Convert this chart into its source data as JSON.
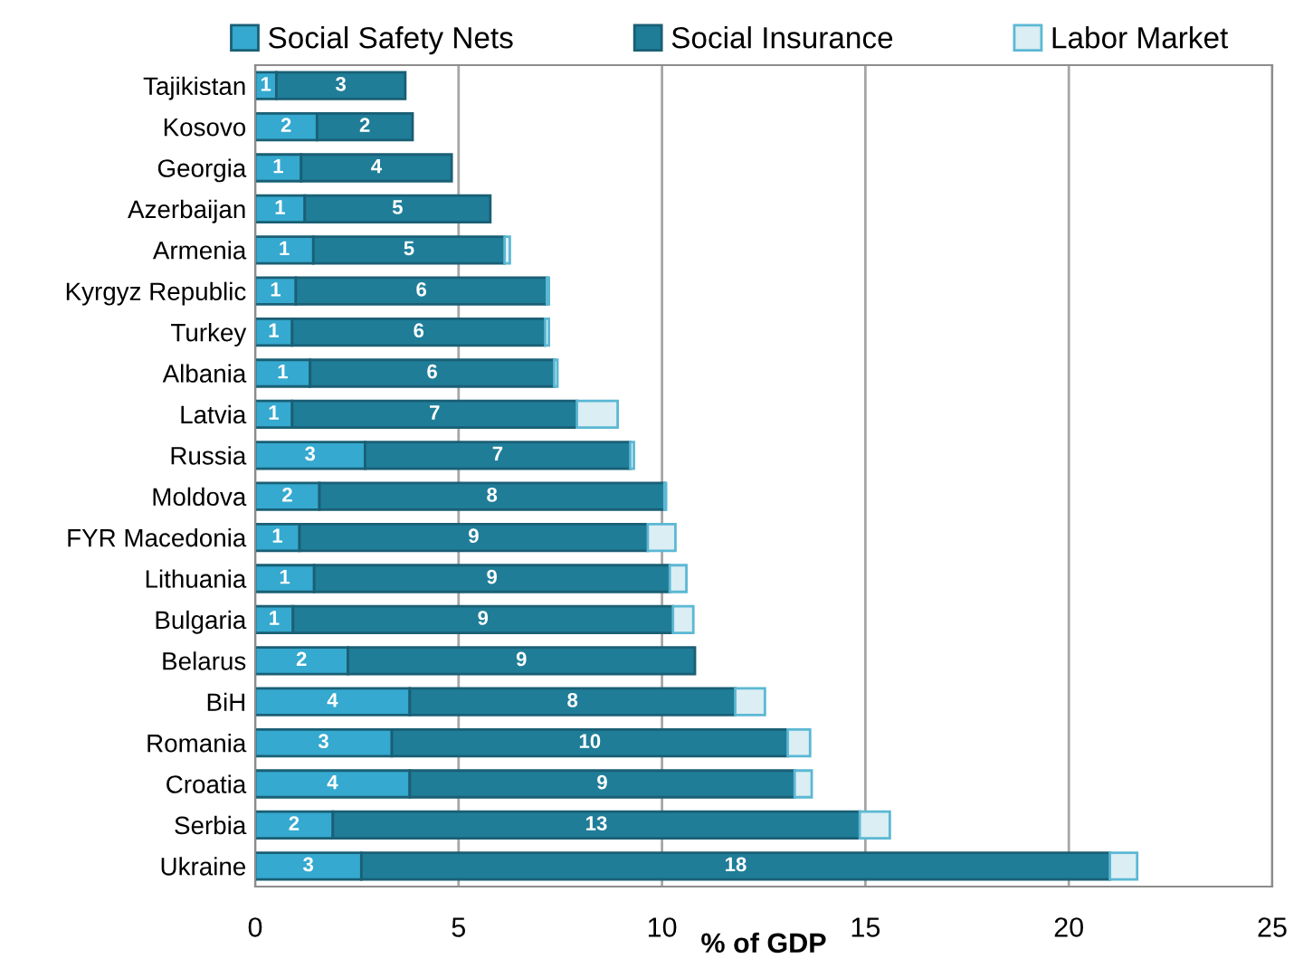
{
  "chart_data": {
    "type": "bar",
    "orientation": "horizontal",
    "stacked": true,
    "xlabel": "% of GDP",
    "categories": [
      "Tajikistan",
      "Kosovo",
      "Georgia",
      "Azerbaijan",
      "Armenia",
      "Kyrgyz Republic",
      "Turkey",
      "Albania",
      "Latvia",
      "Russia",
      "Moldova",
      "FYR Macedonia",
      "Lithuania",
      "Bulgaria",
      "Belarus",
      "BiH",
      "Romania",
      "Croatia",
      "Serbia",
      "Ukraine"
    ],
    "series": [
      {
        "name": "Social Safety Nets",
        "color": "#35a9cf",
        "values": [
          0.52,
          1.52,
          1.13,
          1.22,
          1.43,
          1.0,
          0.91,
          1.35,
          0.91,
          2.7,
          1.58,
          1.09,
          1.45,
          0.93,
          2.28,
          3.8,
          3.36,
          3.8,
          1.91,
          2.61
        ],
        "value_labels": [
          "1",
          "2",
          "1",
          "1",
          "1",
          "1",
          "1",
          "1",
          "1",
          "3",
          "2",
          "1",
          "1",
          "1",
          "2",
          "4",
          "3",
          "4",
          "2",
          "3"
        ]
      },
      {
        "name": "Social Insurance",
        "color": "#1f7d98",
        "values": [
          3.17,
          2.35,
          3.7,
          4.56,
          4.7,
          6.17,
          6.22,
          6.0,
          7.0,
          6.52,
          8.48,
          8.56,
          8.74,
          9.34,
          8.53,
          8.0,
          9.73,
          9.46,
          12.95,
          18.4
        ],
        "value_labels": [
          "3",
          "2",
          "4",
          "5",
          "5",
          "6",
          "6",
          "6",
          "7",
          "7",
          "8",
          "9",
          "9",
          "9",
          "9",
          "8",
          "10",
          "9",
          "13",
          "18"
        ]
      },
      {
        "name": "Labor Market",
        "color": "#dbeef3",
        "values": [
          null,
          null,
          null,
          null,
          0.13,
          0.05,
          0.09,
          0.08,
          1.0,
          0.09,
          0.04,
          0.68,
          0.41,
          0.5,
          null,
          0.73,
          0.55,
          0.42,
          0.74,
          0.67
        ]
      }
    ],
    "xlim": [
      0,
      25
    ],
    "xticks": [
      0,
      5,
      10,
      15,
      20,
      25
    ],
    "grid": "x",
    "legend": "top"
  }
}
